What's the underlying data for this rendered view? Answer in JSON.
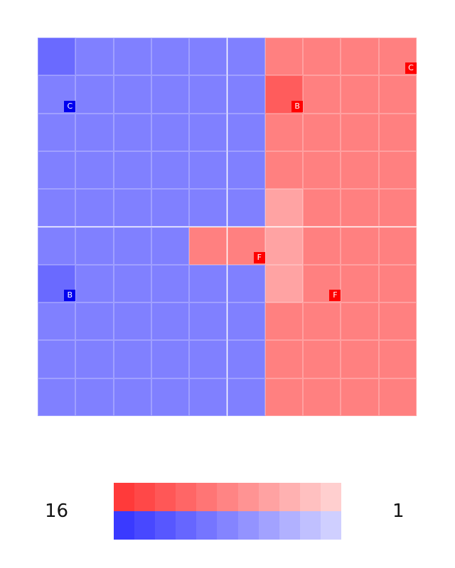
{
  "board": {
    "size": 10,
    "colors": {
      "blue_1": "#8080ff",
      "blue_2": "#6a6aff",
      "red_1": "#ff8080",
      "red_2": "#ff5c5c",
      "red_light": "#ffa3a3"
    },
    "cells": [
      [
        "blue_2",
        "blue_1",
        "blue_1",
        "blue_1",
        "blue_1",
        "blue_1",
        "red_1",
        "red_1",
        "red_1",
        "red_1"
      ],
      [
        "blue_1",
        "blue_1",
        "blue_1",
        "blue_1",
        "blue_1",
        "blue_1",
        "red_2",
        "red_1",
        "red_1",
        "red_1"
      ],
      [
        "blue_1",
        "blue_1",
        "blue_1",
        "blue_1",
        "blue_1",
        "blue_1",
        "red_1",
        "red_1",
        "red_1",
        "red_1"
      ],
      [
        "blue_1",
        "blue_1",
        "blue_1",
        "blue_1",
        "blue_1",
        "blue_1",
        "red_1",
        "red_1",
        "red_1",
        "red_1"
      ],
      [
        "blue_1",
        "blue_1",
        "blue_1",
        "blue_1",
        "blue_1",
        "blue_1",
        "red_light",
        "red_1",
        "red_1",
        "red_1"
      ],
      [
        "blue_1",
        "blue_1",
        "blue_1",
        "blue_1",
        "red_1",
        "red_1",
        "red_light",
        "red_1",
        "red_1",
        "red_1"
      ],
      [
        "blue_2",
        "blue_1",
        "blue_1",
        "blue_1",
        "blue_1",
        "blue_1",
        "red_light",
        "red_1",
        "red_1",
        "red_1"
      ],
      [
        "blue_1",
        "blue_1",
        "blue_1",
        "blue_1",
        "blue_1",
        "blue_1",
        "red_1",
        "red_1",
        "red_1",
        "red_1"
      ],
      [
        "blue_1",
        "blue_1",
        "blue_1",
        "blue_1",
        "blue_1",
        "blue_1",
        "red_1",
        "red_1",
        "red_1",
        "red_1"
      ],
      [
        "blue_1",
        "blue_1",
        "blue_1",
        "blue_1",
        "blue_1",
        "blue_1",
        "red_1",
        "red_1",
        "red_1",
        "red_1"
      ]
    ],
    "badges": [
      {
        "label": "C",
        "side": "red",
        "row": 0,
        "col": 9
      },
      {
        "label": "C",
        "side": "blue",
        "row": 1,
        "col": 0
      },
      {
        "label": "B",
        "side": "red",
        "row": 1,
        "col": 6
      },
      {
        "label": "F",
        "side": "red",
        "row": 5,
        "col": 5
      },
      {
        "label": "B",
        "side": "blue",
        "row": 6,
        "col": 0
      },
      {
        "label": "F",
        "side": "red",
        "row": 6,
        "col": 7
      }
    ]
  },
  "legend": {
    "left_label": "16",
    "right_label": "1",
    "red_scale": [
      "#ff3a3a",
      "#ff4848",
      "#ff5757",
      "#ff6666",
      "#ff7575",
      "#ff8484",
      "#ff9393",
      "#ffa2a2",
      "#ffb1b1",
      "#ffc0c0",
      "#ffcfcf"
    ],
    "blue_scale": [
      "#3a3aff",
      "#4848ff",
      "#5757ff",
      "#6666ff",
      "#7575ff",
      "#8484ff",
      "#9393ff",
      "#a2a2ff",
      "#b1b1ff",
      "#c0c0ff",
      "#cfcfff"
    ]
  },
  "badge_colors": {
    "red": "#ff0000",
    "blue": "#0000ee"
  }
}
